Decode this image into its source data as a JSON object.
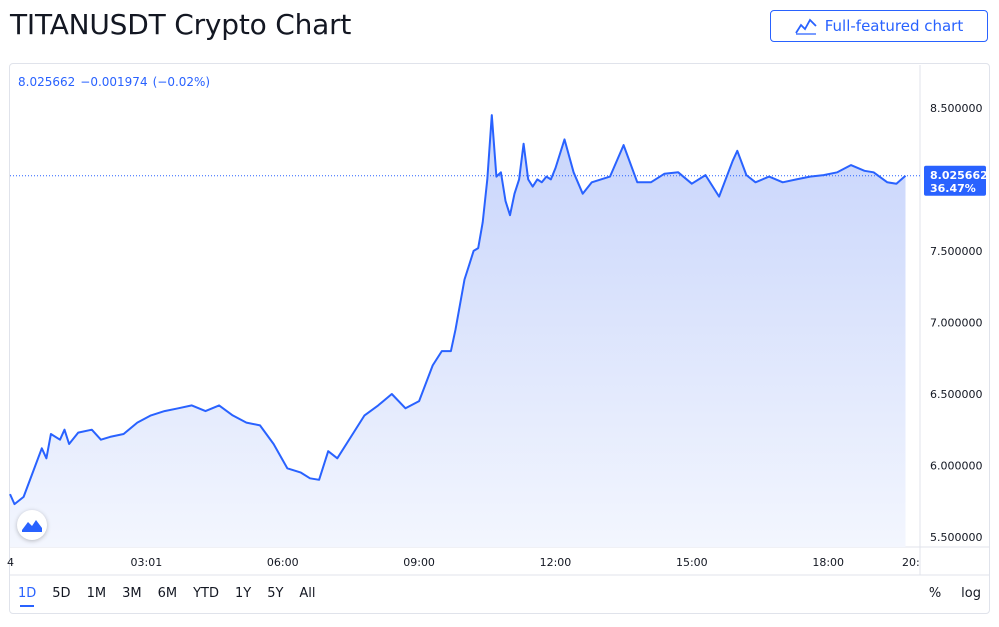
{
  "page": {
    "title": "TITANUSDT Crypto Chart"
  },
  "header": {
    "full_featured_label": "Full-featured chart",
    "full_featured_icon": "chart-line-icon"
  },
  "legend": {
    "price": "8.025662",
    "change": "−0.001974",
    "change_pct": "(−0.02%)"
  },
  "price_label": {
    "price": "8.025662",
    "percent": "36.47%"
  },
  "colors": {
    "accent": "#2962ff",
    "line": "#2962ff",
    "fill_top": "#c7d4fb",
    "fill_bottom": "#f3f6fe"
  },
  "range_buttons": [
    "1D",
    "5D",
    "1M",
    "3M",
    "6M",
    "YTD",
    "1Y",
    "5Y",
    "All"
  ],
  "active_range": "1D",
  "scale_toggles": {
    "percent": "%",
    "log": "log"
  },
  "chart_data": {
    "type": "area",
    "title": "TITANUSDT Crypto Chart",
    "y_axis": {
      "position": "right",
      "ticks": [
        5.5,
        6.0,
        6.5,
        7.0,
        7.5,
        8.0,
        8.5
      ],
      "tick_labels": [
        "5.500000",
        "6.000000",
        "6.500000",
        "7.000000",
        "7.500000",
        "8.000000",
        "8.500000"
      ],
      "ylim": [
        5.43,
        8.8
      ]
    },
    "x_axis": {
      "tick_labels": [
        "03:01",
        "06:00",
        "09:00",
        "12:00",
        "15:00",
        "18:00"
      ],
      "tick_hours": [
        3.0,
        6.0,
        9.0,
        12.0,
        15.0,
        18.0
      ],
      "xlim_hours": [
        0.0,
        19.8
      ],
      "edge_labels": [
        "4",
        "20:"
      ]
    },
    "last_price": 8.025662,
    "grid": false,
    "series": [
      {
        "x": [
          0.0,
          0.1,
          0.3,
          0.5,
          0.7,
          0.8,
          0.9,
          1.1,
          1.2,
          1.3,
          1.5,
          1.8,
          2.0,
          2.2,
          2.5,
          2.8,
          3.1,
          3.4,
          3.7,
          4.0,
          4.3,
          4.6,
          4.9,
          5.2,
          5.5,
          5.8,
          6.1,
          6.4,
          6.6,
          6.8,
          7.0,
          7.2,
          7.5,
          7.8,
          8.1,
          8.4,
          8.7,
          9.0,
          9.3,
          9.5,
          9.7,
          9.8,
          10.0,
          10.1,
          10.2,
          10.3,
          10.4,
          10.5,
          10.6,
          10.7,
          10.8,
          10.9,
          11.0,
          11.1,
          11.2,
          11.3,
          11.4,
          11.5,
          11.6,
          11.7,
          11.8,
          11.9,
          12.0,
          12.2,
          12.4,
          12.6,
          12.8,
          13.0,
          13.2,
          13.5,
          13.8,
          14.1,
          14.4,
          14.7,
          15.0,
          15.3,
          15.6,
          15.9,
          16.0,
          16.2,
          16.4,
          16.7,
          17.0,
          17.3,
          17.6,
          17.9,
          18.2,
          18.5,
          18.8,
          19.0,
          19.3,
          19.5,
          19.7
        ],
        "y": [
          5.8,
          5.73,
          5.78,
          5.95,
          6.12,
          6.05,
          6.22,
          6.18,
          6.25,
          6.15,
          6.23,
          6.25,
          6.18,
          6.2,
          6.22,
          6.3,
          6.35,
          6.38,
          6.4,
          6.42,
          6.38,
          6.42,
          6.35,
          6.3,
          6.28,
          6.15,
          5.98,
          5.95,
          5.91,
          5.9,
          6.1,
          6.05,
          6.2,
          6.35,
          6.42,
          6.5,
          6.4,
          6.45,
          6.7,
          6.8,
          6.8,
          6.95,
          7.3,
          7.4,
          7.5,
          7.52,
          7.7,
          8.0,
          8.45,
          8.02,
          8.05,
          7.85,
          7.75,
          7.9,
          8.0,
          8.25,
          8.0,
          7.95,
          8.0,
          7.98,
          8.02,
          8.0,
          8.08,
          8.28,
          8.05,
          7.9,
          7.98,
          8.0,
          8.02,
          8.24,
          7.98,
          7.98,
          8.04,
          8.05,
          7.97,
          8.03,
          7.88,
          8.13,
          8.2,
          8.03,
          7.98,
          8.02,
          7.98,
          8.0,
          8.02,
          8.03,
          8.05,
          8.1,
          8.06,
          8.05,
          7.98,
          7.97,
          8.025662
        ]
      }
    ]
  }
}
